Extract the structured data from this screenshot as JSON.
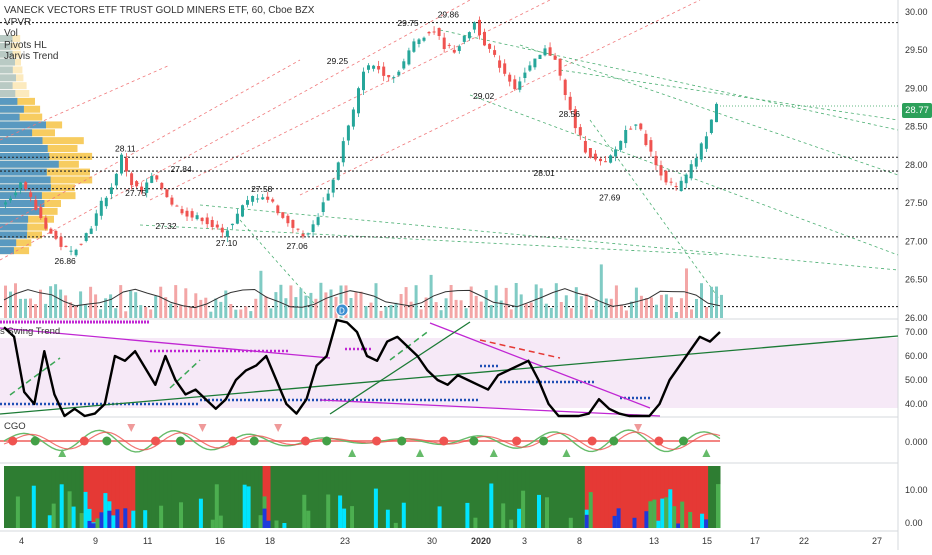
{
  "header": {
    "symbol_line": "VANECK VECTORS ETF TRUST GOLD MINERS ETF, 60, Cboe BZX",
    "indicators": [
      "VPVR",
      "Vol",
      "Pivots HL",
      "Jarvis Trend"
    ]
  },
  "last_price": {
    "label": "28.77",
    "value": 28.77
  },
  "colors": {
    "up": "#26a69a",
    "down": "#ef5350",
    "accent": "#2ca05a",
    "vol_up": "#80cbc4",
    "vol_down": "#f3a6a6"
  },
  "chart_data": [
    {
      "type": "candlestick",
      "pane": "price",
      "y_ticks": [
        "30.00",
        "29.50",
        "29.00",
        "28.50",
        "28.00",
        "27.50",
        "27.00",
        "26.50",
        "26.00"
      ],
      "ylim": [
        26.0,
        30.05
      ],
      "x_ticks": [
        "4",
        "9",
        "11",
        "16",
        "18",
        "23",
        "30",
        "2020",
        "3",
        "8",
        "13",
        "15",
        "17",
        "22",
        "27"
      ],
      "horizontal_levels": [
        29.86,
        28.1,
        27.92,
        27.69,
        27.06,
        26.15
      ],
      "close_path": [
        27.5,
        27.6,
        27.75,
        27.55,
        27.3,
        27.1,
        26.95,
        26.86,
        27.0,
        27.2,
        27.5,
        27.7,
        28.11,
        27.75,
        27.65,
        27.84,
        27.7,
        27.5,
        27.4,
        27.32,
        27.3,
        27.2,
        27.1,
        27.25,
        27.45,
        27.58,
        27.6,
        27.5,
        27.3,
        27.2,
        27.06,
        27.2,
        27.5,
        27.8,
        28.3,
        28.7,
        29.25,
        29.3,
        29.2,
        29.15,
        29.35,
        29.6,
        29.7,
        29.75,
        29.55,
        29.5,
        29.65,
        29.86,
        29.6,
        29.4,
        29.2,
        29.02,
        29.2,
        29.35,
        29.5,
        29.4,
        28.9,
        28.5,
        28.2,
        28.05,
        28.01,
        28.2,
        28.45,
        28.56,
        28.3,
        28.0,
        27.8,
        27.69,
        27.85,
        28.1,
        28.4,
        28.77
      ],
      "pivot_labels": [
        {
          "label": "27.75",
          "x": 13.0,
          "y": 27.75
        },
        {
          "label": "26.86",
          "x": 6.0,
          "y": 26.86
        },
        {
          "label": "28.11",
          "x": 12.0,
          "y": 28.11
        },
        {
          "label": "27.32",
          "x": 16.0,
          "y": 27.32
        },
        {
          "label": "27.84",
          "x": 17.5,
          "y": 27.84
        },
        {
          "label": "27.10",
          "x": 22.0,
          "y": 27.1
        },
        {
          "label": "27.58",
          "x": 25.5,
          "y": 27.58
        },
        {
          "label": "27.06",
          "x": 29.0,
          "y": 27.06
        },
        {
          "label": "29.25",
          "x": 33.0,
          "y": 29.25
        },
        {
          "label": "29.75",
          "x": 40.0,
          "y": 29.75
        },
        {
          "label": "29.86",
          "x": 44.0,
          "y": 29.86
        },
        {
          "label": "29.02",
          "x": 47.5,
          "y": 29.02
        },
        {
          "label": "28.56",
          "x": 56.0,
          "y": 28.56
        },
        {
          "label": "28.01",
          "x": 53.5,
          "y": 28.01
        },
        {
          "label": "27.69",
          "x": 60.0,
          "y": 27.69
        }
      ],
      "dividend_marker": "D"
    },
    {
      "type": "line",
      "pane": "swing",
      "title": "s Swing Trend",
      "y_ticks": [
        "70.00",
        "60.00",
        "50.00",
        "40.00"
      ],
      "ylim": [
        35,
        75
      ],
      "values": [
        72,
        68,
        45,
        40,
        62,
        44,
        35,
        38,
        34,
        36,
        40,
        60,
        58,
        62,
        55,
        48,
        60,
        50,
        44,
        46,
        42,
        38,
        42,
        50,
        54,
        56,
        60,
        50,
        40,
        36,
        42,
        56,
        60,
        75,
        74,
        70,
        60,
        58,
        66,
        68,
        64,
        60,
        54,
        50,
        48,
        52,
        50,
        48,
        46,
        52,
        54,
        56,
        58,
        50,
        40,
        30,
        28,
        30,
        36,
        42,
        38,
        36,
        30,
        28,
        32,
        40,
        50,
        56,
        62,
        68,
        66,
        70
      ]
    },
    {
      "type": "area",
      "pane": "cgo",
      "title": "CGO",
      "y_ticks": [
        "0.000"
      ]
    },
    {
      "type": "heatmap",
      "pane": "bottom",
      "y_ticks": [
        "10.00",
        "0.00"
      ]
    }
  ]
}
